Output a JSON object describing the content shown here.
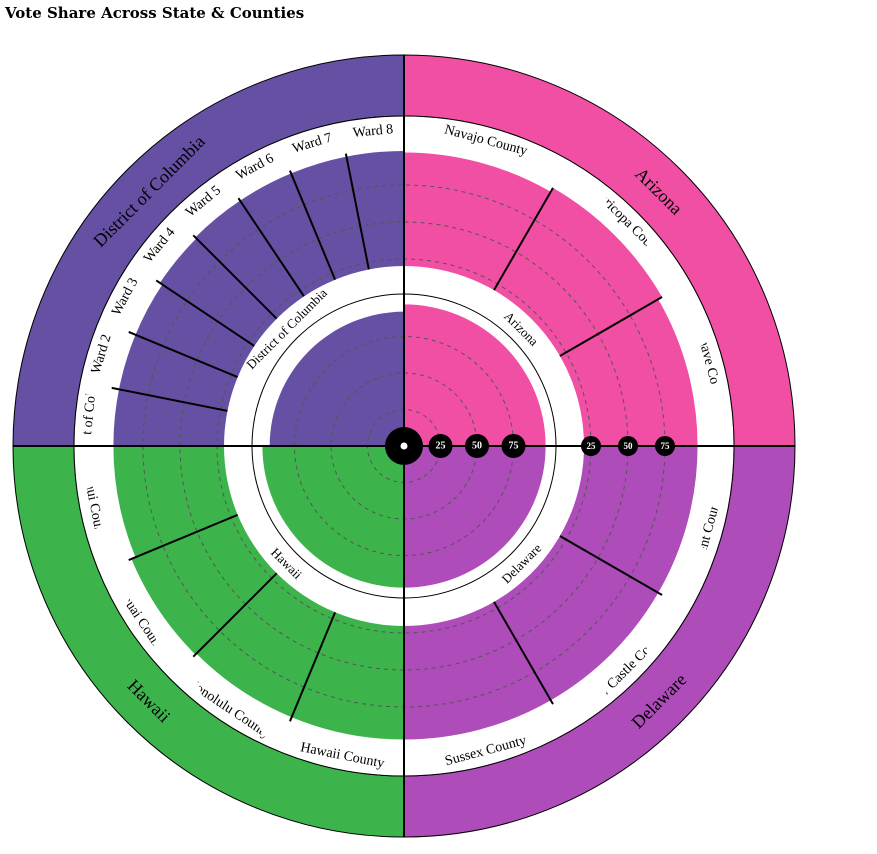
{
  "chart_data": {
    "type": "radial-bar",
    "title": "Vote Share Across State & Counties",
    "radial_ticks": [
      25,
      50,
      75
    ],
    "value_range": [
      0,
      100
    ],
    "states": [
      {
        "name": "Arizona",
        "color": "#f14fa3",
        "value": 97,
        "counties": [
          {
            "name": "Navajo County",
            "value": 97
          },
          {
            "name": "Maricopa County",
            "value": 100
          },
          {
            "name": "Mohave County",
            "value": 97
          }
        ]
      },
      {
        "name": "Delaware",
        "color": "#ae4cba",
        "value": 97,
        "counties": [
          {
            "name": "Kent County",
            "value": 97
          },
          {
            "name": "New Castle County",
            "value": 97
          },
          {
            "name": "Sussex County",
            "value": 97
          }
        ]
      },
      {
        "name": "Hawaii",
        "color": "#3cb44b",
        "value": 97,
        "counties": [
          {
            "name": "Hawaii County",
            "value": 97
          },
          {
            "name": "Honolulu County",
            "value": 97
          },
          {
            "name": "Kauai County",
            "value": 98
          },
          {
            "name": "Maui County",
            "value": 95
          }
        ]
      },
      {
        "name": "District of Columbia",
        "color": "#6550a3",
        "value": 92,
        "counties": [
          {
            "name": "District of Columbia",
            "value": 95
          },
          {
            "name": "Ward 2",
            "value": 95
          },
          {
            "name": "Ward 3",
            "value": 95
          },
          {
            "name": "Ward 4",
            "value": 97
          },
          {
            "name": "Ward 5",
            "value": 98
          },
          {
            "name": "Ward 6",
            "value": 98
          },
          {
            "name": "Ward 7",
            "value": 98
          },
          {
            "name": "Ward 8",
            "value": 98
          }
        ]
      }
    ]
  }
}
